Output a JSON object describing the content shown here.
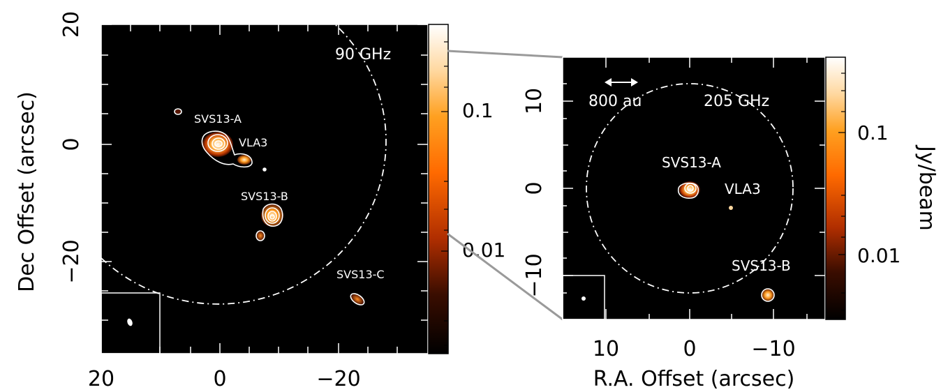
{
  "chart_data": [
    {
      "type": "heatmap",
      "panel": "left",
      "frequency_label": "90 GHz",
      "xlabel": "",
      "ylabel": "Dec Offset (arcsec)",
      "x_ticks": [
        "20",
        "0",
        "−20"
      ],
      "y_ticks": [
        "20",
        "0",
        "−20"
      ],
      "xlim": [
        20,
        -35
      ],
      "ylim": [
        -35,
        20
      ],
      "colorbar": {
        "ticks": [
          "0.1",
          "0.01"
        ],
        "scale": "log"
      },
      "sources": [
        {
          "name": "SVS13-A",
          "x": 0,
          "y": 0
        },
        {
          "name": "VLA3",
          "x": -4.5,
          "y": -2.5
        },
        {
          "name": "SVS13-B",
          "x": -8.5,
          "y": -12.5
        },
        {
          "name": "SVS13-C",
          "x": -23,
          "y": -27
        }
      ],
      "primary_beam_radius_arcsec": 28
    },
    {
      "type": "heatmap",
      "panel": "right",
      "frequency_label": "205 GHz",
      "scale_bar_label": "800 au",
      "xlabel": "R.A. Offset (arcsec)",
      "ylabel": "",
      "x_ticks": [
        "10",
        "0",
        "−10"
      ],
      "y_ticks": [
        "10",
        "0",
        "−10"
      ],
      "xlim": [
        15,
        -15
      ],
      "ylim": [
        -15,
        15
      ],
      "colorbar": {
        "ticks": [
          "0.1",
          "0.01"
        ],
        "label": "Jy/beam",
        "scale": "log"
      },
      "sources": [
        {
          "name": "SVS13-A",
          "x": 0,
          "y": 0
        },
        {
          "name": "VLA3",
          "x": -4.5,
          "y": -2.3
        },
        {
          "name": "SVS13-B",
          "x": -8.5,
          "y": -12.5
        }
      ],
      "primary_beam_radius_arcsec": 12
    }
  ]
}
